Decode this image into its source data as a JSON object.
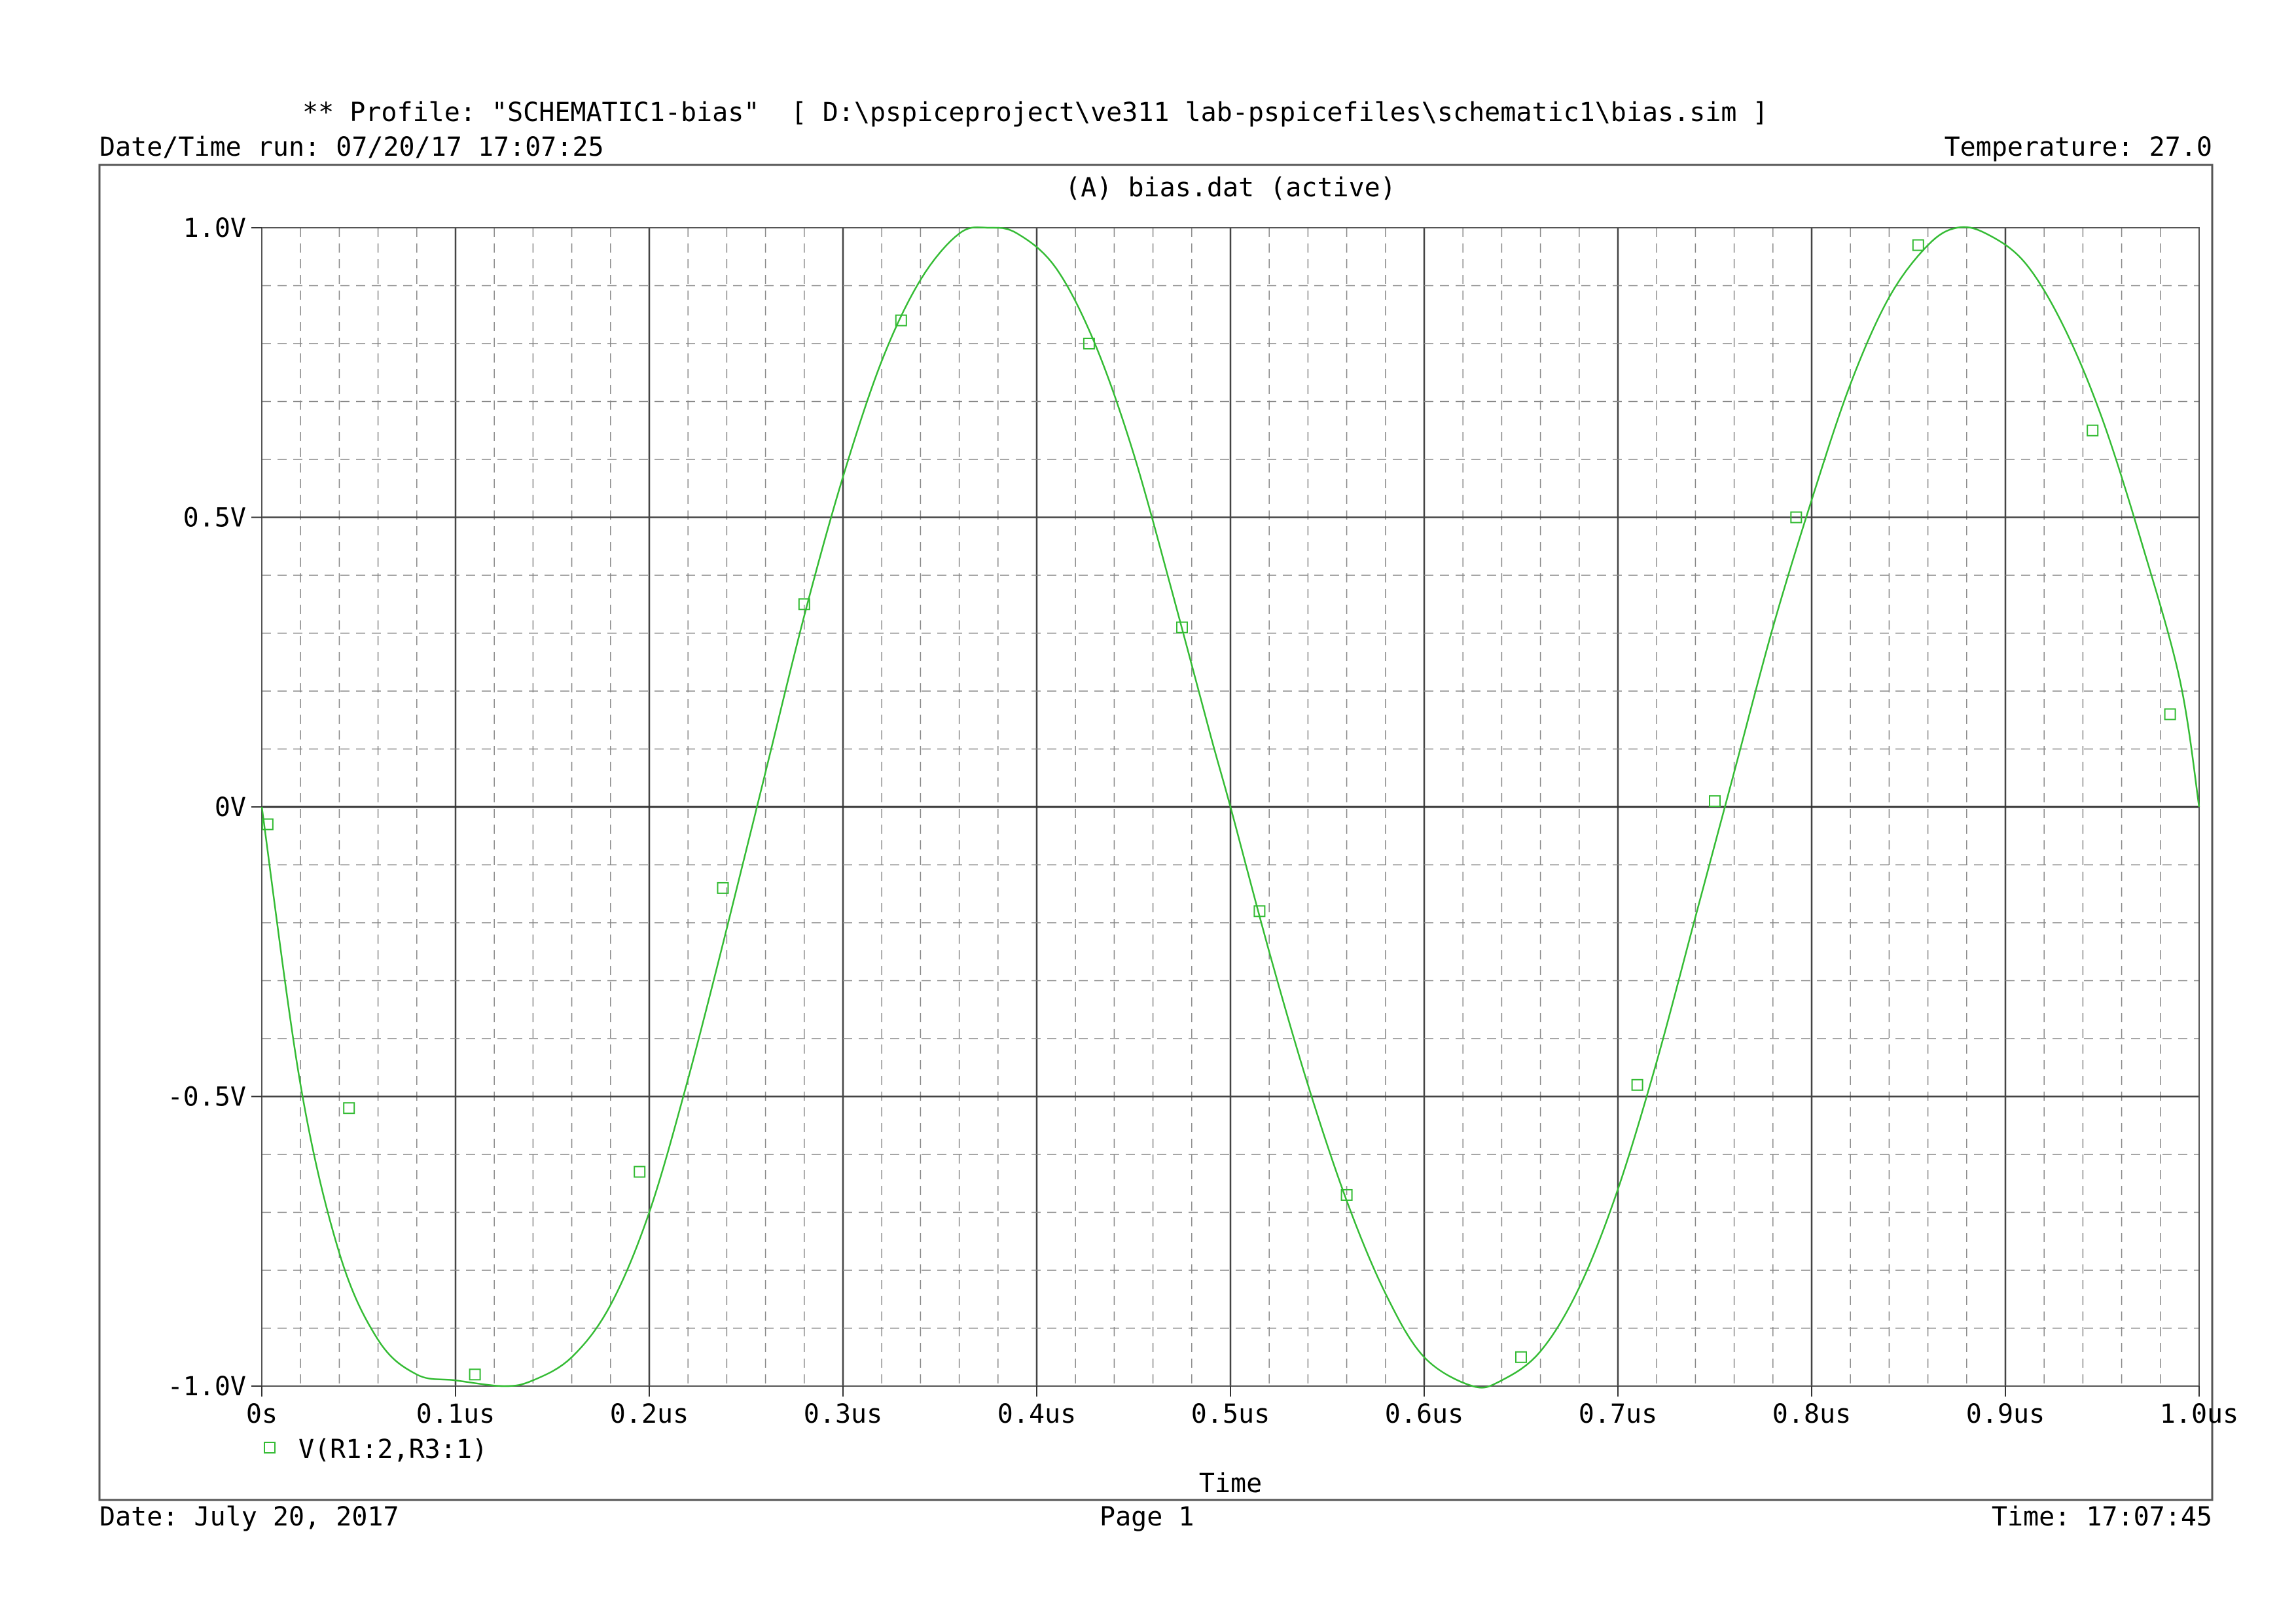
{
  "header": {
    "profile_line": "** Profile: \"SCHEMATIC1-bias\"  [ D:\\pspiceproject\\ve311 lab-pspicefiles\\schematic1\\bias.sim ]",
    "datetime_run": "Date/Time run: 07/20/17 17:07:25",
    "temperature": "Temperature: 27.0"
  },
  "footer": {
    "date": "Date: July 20, 2017",
    "page": "Page 1",
    "time": "Time: 17:07:45"
  },
  "colors": {
    "trace": "#33bb33",
    "grid_major": "#444444",
    "grid_minor": "#888888",
    "frame": "#555555"
  },
  "chart_data": {
    "type": "line",
    "title": "(A) bias.dat (active)",
    "xlabel": "Time",
    "ylabel": "",
    "xlim": [
      0,
      1.0
    ],
    "ylim": [
      -1.0,
      1.0
    ],
    "x_unit": "us",
    "x_tick_labels": [
      "0s",
      "0.1us",
      "0.2us",
      "0.3us",
      "0.4us",
      "0.5us",
      "0.6us",
      "0.7us",
      "0.8us",
      "0.9us",
      "1.0us"
    ],
    "x_ticks": [
      0,
      0.1,
      0.2,
      0.3,
      0.4,
      0.5,
      0.6,
      0.7,
      0.8,
      0.9,
      1.0
    ],
    "y_tick_labels": [
      "1.0V",
      "0.5V",
      "0V",
      "-0.5V",
      "-1.0V"
    ],
    "y_ticks": [
      1.0,
      0.5,
      0,
      -0.5,
      -1.0
    ],
    "grid": true,
    "legend": "bottom-left",
    "series": [
      {
        "name": "V(R1:2,R3:1)",
        "marker": "square",
        "x": [
          0,
          0.02,
          0.04,
          0.06,
          0.08,
          0.1,
          0.125,
          0.14,
          0.16,
          0.18,
          0.2,
          0.22,
          0.24,
          0.26,
          0.28,
          0.3,
          0.32,
          0.34,
          0.36,
          0.375,
          0.39,
          0.41,
          0.43,
          0.45,
          0.47,
          0.49,
          0.5,
          0.52,
          0.54,
          0.56,
          0.58,
          0.6,
          0.625,
          0.64,
          0.66,
          0.68,
          0.7,
          0.72,
          0.74,
          0.76,
          0.78,
          0.8,
          0.82,
          0.84,
          0.86,
          0.875,
          0.89,
          0.91,
          0.93,
          0.95,
          0.97,
          0.99,
          1.0
        ],
        "y": [
          0,
          -0.48,
          -0.77,
          -0.92,
          -0.98,
          -0.99,
          -1.0,
          -0.99,
          -0.95,
          -0.86,
          -0.7,
          -0.47,
          -0.21,
          0.06,
          0.33,
          0.57,
          0.77,
          0.91,
          0.99,
          1.0,
          0.99,
          0.93,
          0.8,
          0.61,
          0.37,
          0.12,
          0,
          -0.25,
          -0.48,
          -0.68,
          -0.84,
          -0.95,
          -1.0,
          -0.99,
          -0.94,
          -0.83,
          -0.66,
          -0.44,
          -0.19,
          0.06,
          0.31,
          0.53,
          0.73,
          0.88,
          0.97,
          1.0,
          0.99,
          0.94,
          0.83,
          0.67,
          0.46,
          0.22,
          0
        ]
      }
    ],
    "markers": {
      "x": [
        0.003,
        0.045,
        0.11,
        0.195,
        0.238,
        0.28,
        0.33,
        0.427,
        0.475,
        0.515,
        0.56,
        0.65,
        0.71,
        0.75,
        0.792,
        0.855,
        0.945,
        0.985
      ],
      "y": [
        -0.03,
        -0.52,
        -0.98,
        -0.63,
        -0.14,
        0.35,
        0.84,
        0.8,
        0.31,
        -0.18,
        -0.67,
        -0.95,
        -0.48,
        0.01,
        0.5,
        0.97,
        0.65,
        0.16
      ]
    }
  }
}
